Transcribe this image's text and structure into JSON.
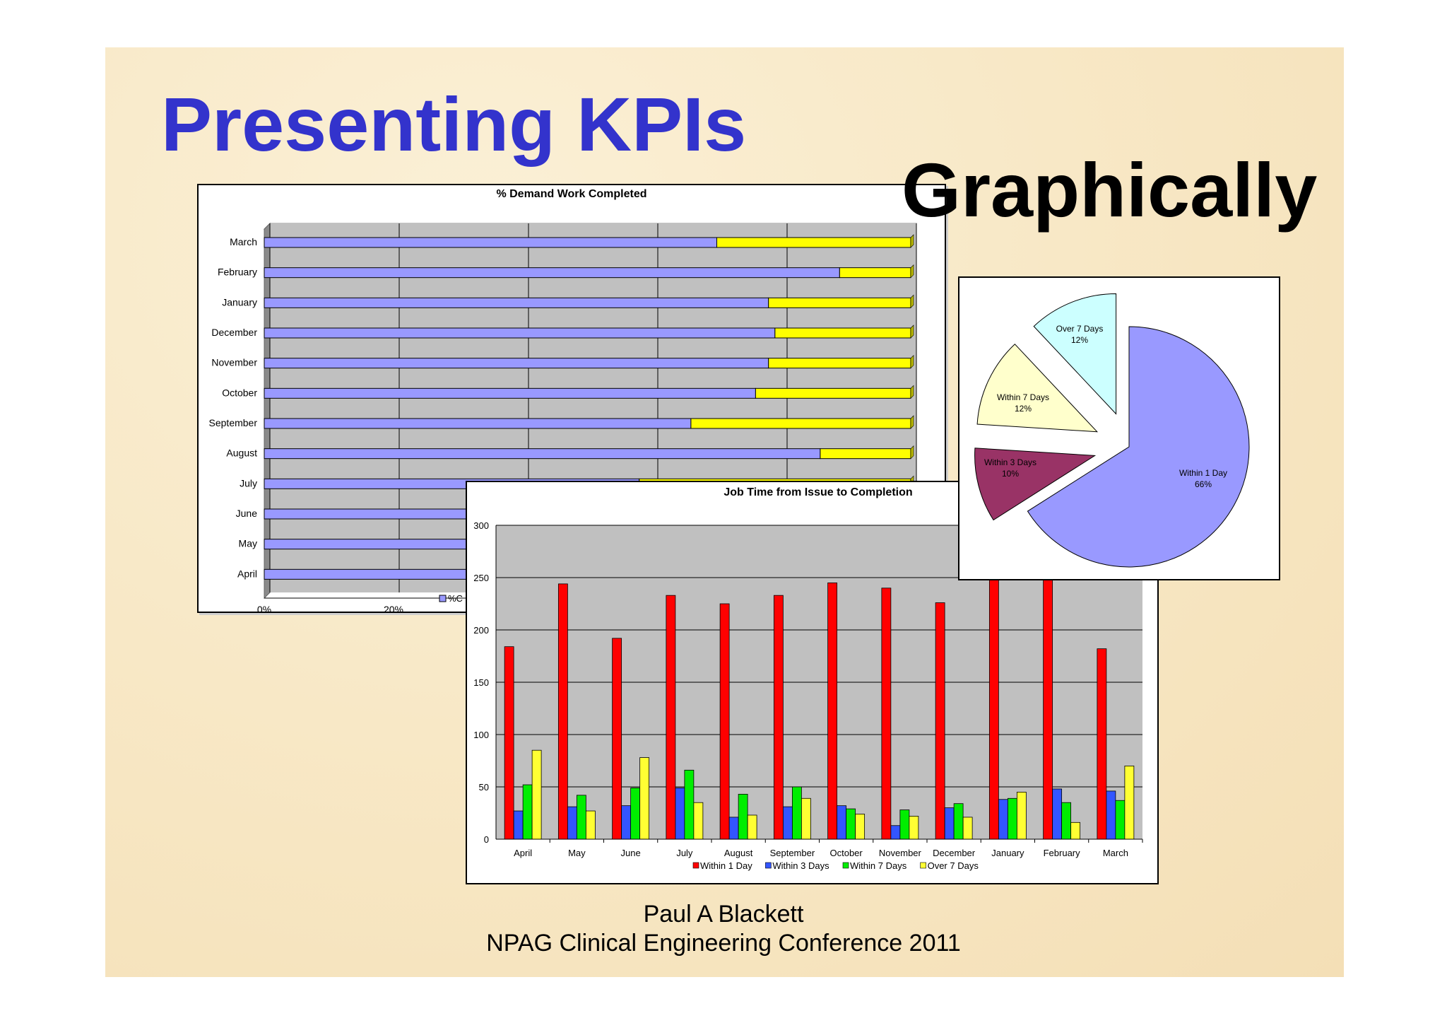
{
  "slide": {
    "title": "Presenting KPIs",
    "title_continuation": "Graphically",
    "author": "Paul A Blackett",
    "event": "NPAG Clinical Engineering Conference 2011"
  },
  "colors": {
    "title": "#3333cc",
    "completed": "#9999ff",
    "incomplete": "#ffff00",
    "within_1_day": "#ff0000",
    "within_3_days": "#3355ff",
    "within_7_days": "#00ee00",
    "over_7_days": "#ffff33",
    "pie_within_1_day": "#9999ff",
    "pie_within_3_days": "#993366",
    "pie_within_7_days": "#ffffcc",
    "pie_over_7_days": "#ccffff"
  },
  "chart_data": [
    {
      "type": "bar",
      "orientation": "horizontal",
      "stacked": true,
      "title": "% Demand Work Completed",
      "categories": [
        "March",
        "February",
        "January",
        "December",
        "November",
        "October",
        "September",
        "August",
        "July",
        "June",
        "May",
        "April"
      ],
      "series": [
        {
          "name": "%C",
          "values": [
            0.7,
            0.89,
            0.78,
            0.79,
            0.78,
            0.76,
            0.66,
            0.86,
            0.58,
            0.62,
            0.55,
            0.6
          ]
        },
        {
          "values": [
            0.3,
            0.11,
            0.22,
            0.21,
            0.22,
            0.24,
            0.34,
            0.14,
            0.42,
            0.38,
            0.45,
            0.4
          ]
        }
      ],
      "x_ticks": [
        "0%",
        "20%"
      ],
      "xlim": [
        0,
        1
      ],
      "grid": true,
      "legend": "bottom"
    },
    {
      "type": "bar",
      "title": "Job Time from Issue to Completion",
      "categories": [
        "April",
        "May",
        "June",
        "July",
        "August",
        "September",
        "October",
        "November",
        "December",
        "January",
        "February",
        "March"
      ],
      "series": [
        {
          "name": "Within 1 Day",
          "values": [
            184,
            244,
            192,
            233,
            225,
            233,
            245,
            240,
            226,
            262,
            258,
            182
          ]
        },
        {
          "name": "Within 3 Days",
          "values": [
            27,
            31,
            32,
            49,
            21,
            31,
            32,
            13,
            30,
            38,
            48,
            46
          ]
        },
        {
          "name": "Within 7 Days",
          "values": [
            52,
            42,
            49,
            66,
            43,
            50,
            29,
            28,
            34,
            39,
            35,
            37
          ]
        },
        {
          "name": "Over 7 Days",
          "values": [
            85,
            27,
            78,
            35,
            23,
            39,
            24,
            22,
            21,
            45,
            16,
            70
          ]
        }
      ],
      "y_ticks": [
        "0",
        "50",
        "100",
        "150",
        "200",
        "250",
        "300"
      ],
      "ylim": [
        0,
        300
      ],
      "grid": true,
      "legend": "bottom"
    },
    {
      "type": "pie",
      "exploded": true,
      "slices": [
        {
          "name": "Within 1 Day",
          "label": "66%",
          "value": 66
        },
        {
          "name": "Within 3 Days",
          "label": "10%",
          "value": 10
        },
        {
          "name": "Within 7 Days",
          "label": "12%",
          "value": 12
        },
        {
          "name": "Over 7 Days",
          "label": "12%",
          "value": 12
        }
      ]
    }
  ]
}
